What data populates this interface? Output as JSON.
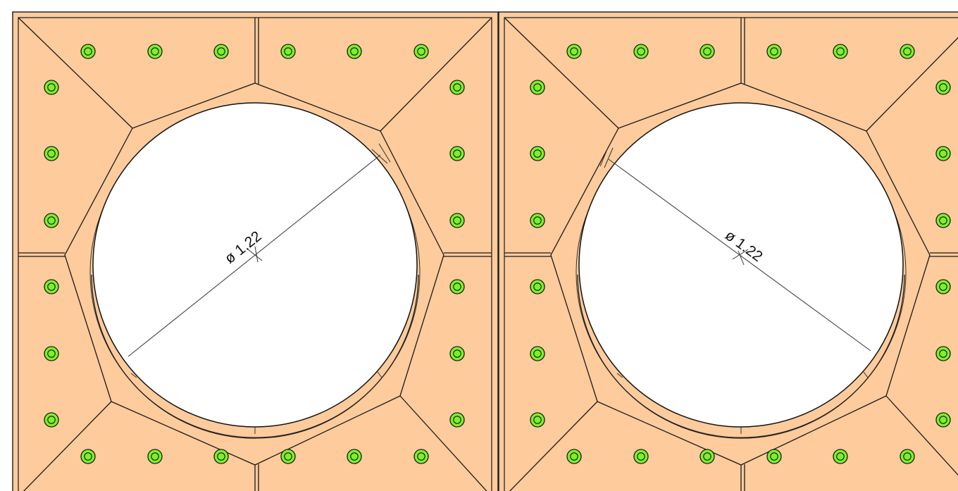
{
  "colors": {
    "plate_fill": "#fdcb9c",
    "bolt_fill": "#7cf02a",
    "line": "#1a1a1a",
    "hole_fill": "#ffffff"
  },
  "panels": [
    {
      "id": "left",
      "dimension_label": "ø 1.22"
    },
    {
      "id": "right",
      "dimension_label": "ø 1.22"
    }
  ],
  "icons": {
    "bolt": "bolt-icon"
  }
}
